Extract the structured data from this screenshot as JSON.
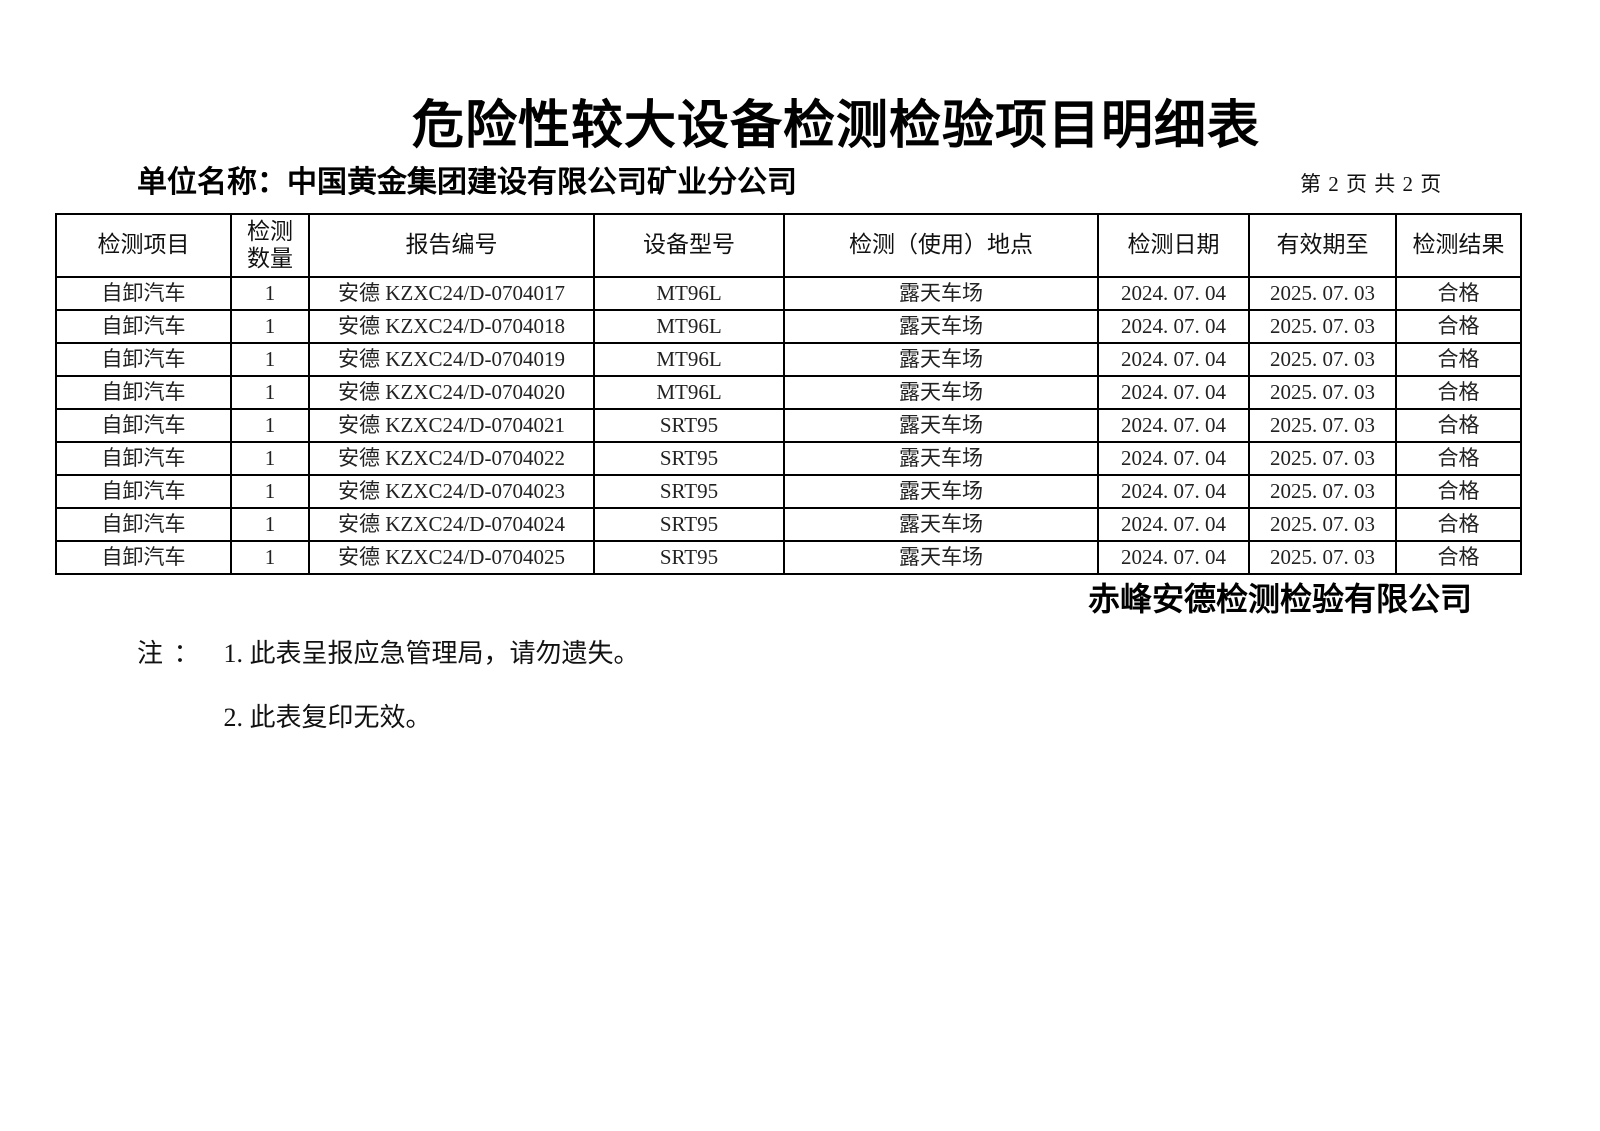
{
  "page": {
    "title": "危险性较大设备检测检验项目明细表",
    "unit_label": "单位名称：",
    "unit_name": "中国黄金集团建设有限公司矿业分公司",
    "page_info": "第 2 页  共 2 页"
  },
  "table": {
    "headers": [
      "检测项目",
      "检测数量",
      "报告编号",
      "设备型号",
      "检测（使用）地点",
      "检测日期",
      "有效期至",
      "检测结果"
    ],
    "rows": [
      [
        "自卸汽车",
        "1",
        "安德 KZXC24/D-0704017",
        "MT96L",
        "露天车场",
        "2024. 07. 04",
        "2025. 07. 03",
        "合格"
      ],
      [
        "自卸汽车",
        "1",
        "安德 KZXC24/D-0704018",
        "MT96L",
        "露天车场",
        "2024. 07. 04",
        "2025. 07. 03",
        "合格"
      ],
      [
        "自卸汽车",
        "1",
        "安德 KZXC24/D-0704019",
        "MT96L",
        "露天车场",
        "2024. 07. 04",
        "2025. 07. 03",
        "合格"
      ],
      [
        "自卸汽车",
        "1",
        "安德 KZXC24/D-0704020",
        "MT96L",
        "露天车场",
        "2024. 07. 04",
        "2025. 07. 03",
        "合格"
      ],
      [
        "自卸汽车",
        "1",
        "安德 KZXC24/D-0704021",
        "SRT95",
        "露天车场",
        "2024. 07. 04",
        "2025. 07. 03",
        "合格"
      ],
      [
        "自卸汽车",
        "1",
        "安德 KZXC24/D-0704022",
        "SRT95",
        "露天车场",
        "2024. 07. 04",
        "2025. 07. 03",
        "合格"
      ],
      [
        "自卸汽车",
        "1",
        "安德 KZXC24/D-0704023",
        "SRT95",
        "露天车场",
        "2024. 07. 04",
        "2025. 07. 03",
        "合格"
      ],
      [
        "自卸汽车",
        "1",
        "安德 KZXC24/D-0704024",
        "SRT95",
        "露天车场",
        "2024. 07. 04",
        "2025. 07. 03",
        "合格"
      ],
      [
        "自卸汽车",
        "1",
        "安德 KZXC24/D-0704025",
        "SRT95",
        "露天车场",
        "2024. 07. 04",
        "2025. 07. 03",
        "合格"
      ]
    ]
  },
  "footer": {
    "company": "赤峰安德检测检验有限公司",
    "note_label": "注 ：",
    "notes": [
      "1. 此表呈报应急管理局，请勿遗失。",
      "2. 此表复印无效。"
    ]
  },
  "colors": {
    "text": "#222222",
    "heading": "#000000",
    "border": "#000000",
    "background": "#ffffff"
  }
}
